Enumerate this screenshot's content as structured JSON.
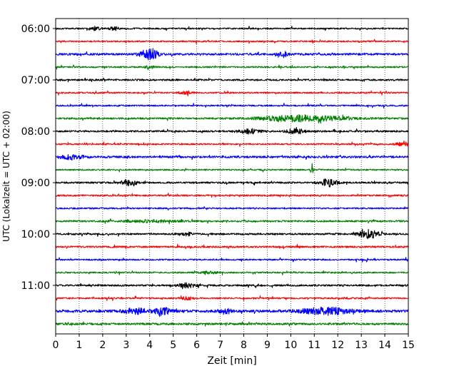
{
  "chart_data": {
    "type": "line",
    "title": "",
    "xlabel": "Zeit  [min]",
    "ylabel": "UTC (Lokalzeit = UTC + 02:00)",
    "xlim": [
      0,
      15
    ],
    "x_ticks": [
      "0",
      "1",
      "2",
      "3",
      "4",
      "5",
      "6",
      "7",
      "8",
      "9",
      "10",
      "11",
      "12",
      "13",
      "14",
      "15"
    ],
    "y_ticks": [
      "06:00",
      "07:00",
      "08:00",
      "09:00",
      "10:00",
      "11:00"
    ],
    "grid": "vertical dotted at each minute",
    "legend": "none",
    "trace_interval_min": 15,
    "trace_color_cycle": [
      "#000000",
      "#ff0000",
      "#0000ff",
      "#008000"
    ],
    "traces": [
      {
        "start": "06:00",
        "color": "#000000",
        "base": 1.0,
        "events": [
          {
            "t": 1.7,
            "a": 2.5,
            "w": 0.2
          },
          {
            "t": 2.5,
            "a": 2.5,
            "w": 0.2
          }
        ]
      },
      {
        "start": "06:15",
        "color": "#ff0000",
        "base": 1.0,
        "events": []
      },
      {
        "start": "06:30",
        "color": "#0000ff",
        "base": 1.4,
        "events": [
          {
            "t": 4.0,
            "a": 7.0,
            "w": 0.4
          },
          {
            "t": 9.6,
            "a": 4.5,
            "w": 0.25
          }
        ]
      },
      {
        "start": "06:45",
        "color": "#008000",
        "base": 1.0,
        "events": [
          {
            "t": 4.0,
            "a": 2.0,
            "w": 0.2
          }
        ]
      },
      {
        "start": "07:00",
        "color": "#000000",
        "base": 1.2,
        "events": []
      },
      {
        "start": "07:15",
        "color": "#ff0000",
        "base": 1.0,
        "events": [
          {
            "t": 5.5,
            "a": 1.5,
            "w": 0.3
          }
        ]
      },
      {
        "start": "07:30",
        "color": "#0000ff",
        "base": 1.0,
        "events": []
      },
      {
        "start": "07:45",
        "color": "#008000",
        "base": 1.2,
        "events": [
          {
            "t": 10.5,
            "a": 4.0,
            "w": 1.8
          }
        ]
      },
      {
        "start": "08:00",
        "color": "#000000",
        "base": 1.2,
        "events": [
          {
            "t": 8.2,
            "a": 3.0,
            "w": 0.5
          },
          {
            "t": 10.2,
            "a": 3.5,
            "w": 0.35
          }
        ]
      },
      {
        "start": "08:15",
        "color": "#ff0000",
        "base": 1.0,
        "events": [
          {
            "t": 14.8,
            "a": 2.5,
            "w": 0.3
          }
        ]
      },
      {
        "start": "08:30",
        "color": "#0000ff",
        "base": 1.4,
        "events": [
          {
            "t": 0.7,
            "a": 3.0,
            "w": 0.5
          }
        ]
      },
      {
        "start": "08:45",
        "color": "#008000",
        "base": 1.0,
        "events": [
          {
            "t": 10.9,
            "a": 9.0,
            "w": 0.05
          }
        ]
      },
      {
        "start": "09:00",
        "color": "#000000",
        "base": 1.2,
        "events": [
          {
            "t": 3.1,
            "a": 4.0,
            "w": 0.35
          },
          {
            "t": 11.6,
            "a": 5.5,
            "w": 0.35
          }
        ]
      },
      {
        "start": "09:15",
        "color": "#ff0000",
        "base": 1.1,
        "events": []
      },
      {
        "start": "09:30",
        "color": "#0000ff",
        "base": 1.0,
        "events": []
      },
      {
        "start": "09:45",
        "color": "#008000",
        "base": 1.2,
        "events": [
          {
            "t": 4.0,
            "a": 1.5,
            "w": 1.0
          }
        ]
      },
      {
        "start": "10:00",
        "color": "#000000",
        "base": 1.2,
        "events": [
          {
            "t": 13.3,
            "a": 6.0,
            "w": 0.4
          },
          {
            "t": 5.6,
            "a": 2.0,
            "w": 0.2
          }
        ]
      },
      {
        "start": "10:15",
        "color": "#ff0000",
        "base": 1.2,
        "events": []
      },
      {
        "start": "10:30",
        "color": "#0000ff",
        "base": 1.0,
        "events": []
      },
      {
        "start": "10:45",
        "color": "#008000",
        "base": 1.0,
        "events": [
          {
            "t": 6.5,
            "a": 1.5,
            "w": 0.4
          }
        ]
      },
      {
        "start": "11:00",
        "color": "#000000",
        "base": 1.2,
        "events": [
          {
            "t": 5.6,
            "a": 3.0,
            "w": 0.4
          }
        ]
      },
      {
        "start": "11:15",
        "color": "#ff0000",
        "base": 1.0,
        "events": [
          {
            "t": 5.6,
            "a": 2.0,
            "w": 0.3
          }
        ]
      },
      {
        "start": "11:30",
        "color": "#0000ff",
        "base": 1.8,
        "events": [
          {
            "t": 3.4,
            "a": 3.5,
            "w": 0.5
          },
          {
            "t": 4.5,
            "a": 4.5,
            "w": 0.4
          },
          {
            "t": 7.2,
            "a": 4.0,
            "w": 0.25
          },
          {
            "t": 11.5,
            "a": 4.5,
            "w": 1.0
          }
        ]
      },
      {
        "start": "11:45",
        "color": "#008000",
        "base": 1.4,
        "events": []
      }
    ]
  }
}
